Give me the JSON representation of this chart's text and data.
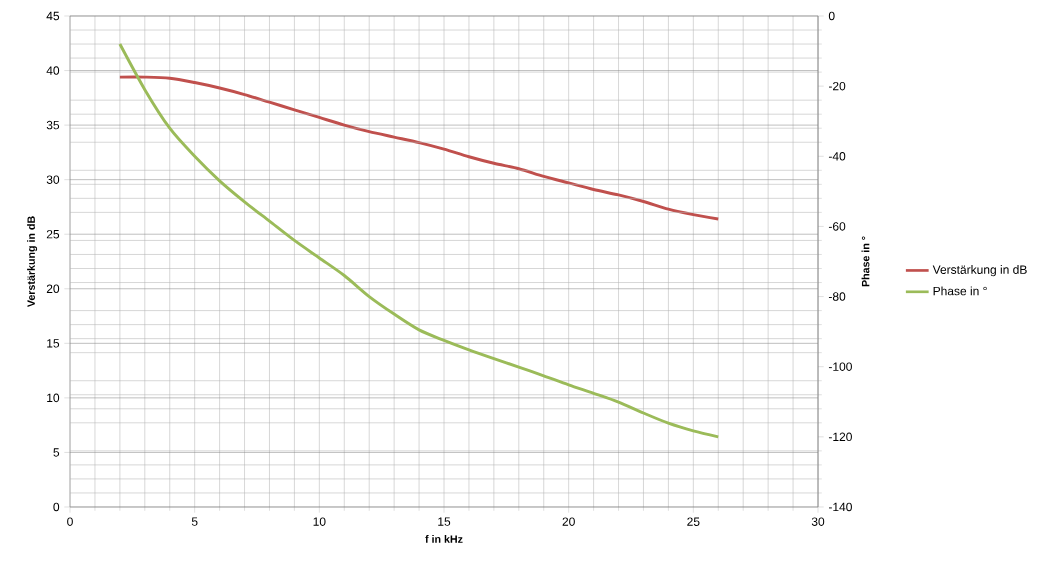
{
  "chart_data": {
    "type": "line",
    "xlabel": "f in kHz",
    "ylabel": "Verstärkung in dB",
    "y2label": "Phase in °",
    "x": [
      2,
      3,
      4,
      5,
      6,
      7,
      8,
      9,
      10,
      11,
      12,
      13,
      14,
      15,
      16,
      17,
      18,
      19,
      20,
      21,
      22,
      23,
      24,
      25,
      26
    ],
    "series": [
      {
        "name": "Verstärkung in dB",
        "color": "#c0504d",
        "axis": "y",
        "values": [
          39.4,
          39.4,
          39.3,
          38.9,
          38.4,
          37.8,
          37.1,
          36.4,
          35.7,
          35.0,
          34.4,
          33.9,
          33.4,
          32.8,
          32.1,
          31.5,
          31.0,
          30.3,
          29.7,
          29.1,
          28.6,
          28.0,
          27.3,
          26.8,
          26.4
        ]
      },
      {
        "name": "Phase in °",
        "color": "#9bbb59",
        "axis": "y2",
        "values": [
          -8,
          -21,
          -32,
          -40,
          -47,
          -53,
          -58.5,
          -64,
          -69,
          -74,
          -80,
          -85,
          -89.5,
          -92.5,
          -95.2,
          -97.7,
          -100.1,
          -102.6,
          -105.2,
          -107.6,
          -110.1,
          -113.2,
          -116.1,
          -118.3,
          -120
        ]
      }
    ],
    "xlim": [
      0,
      30
    ],
    "xticks": [
      0,
      5,
      10,
      15,
      20,
      25,
      30
    ],
    "ylim": [
      0,
      45
    ],
    "yticks": [
      0,
      5,
      10,
      15,
      20,
      25,
      30,
      35,
      40,
      45
    ],
    "y2lim": [
      -140,
      0
    ],
    "y2ticks": [
      -140,
      -120,
      -100,
      -80,
      -60,
      -40,
      -20,
      0
    ],
    "grid": true,
    "legend": "right",
    "line_style": "solid"
  }
}
